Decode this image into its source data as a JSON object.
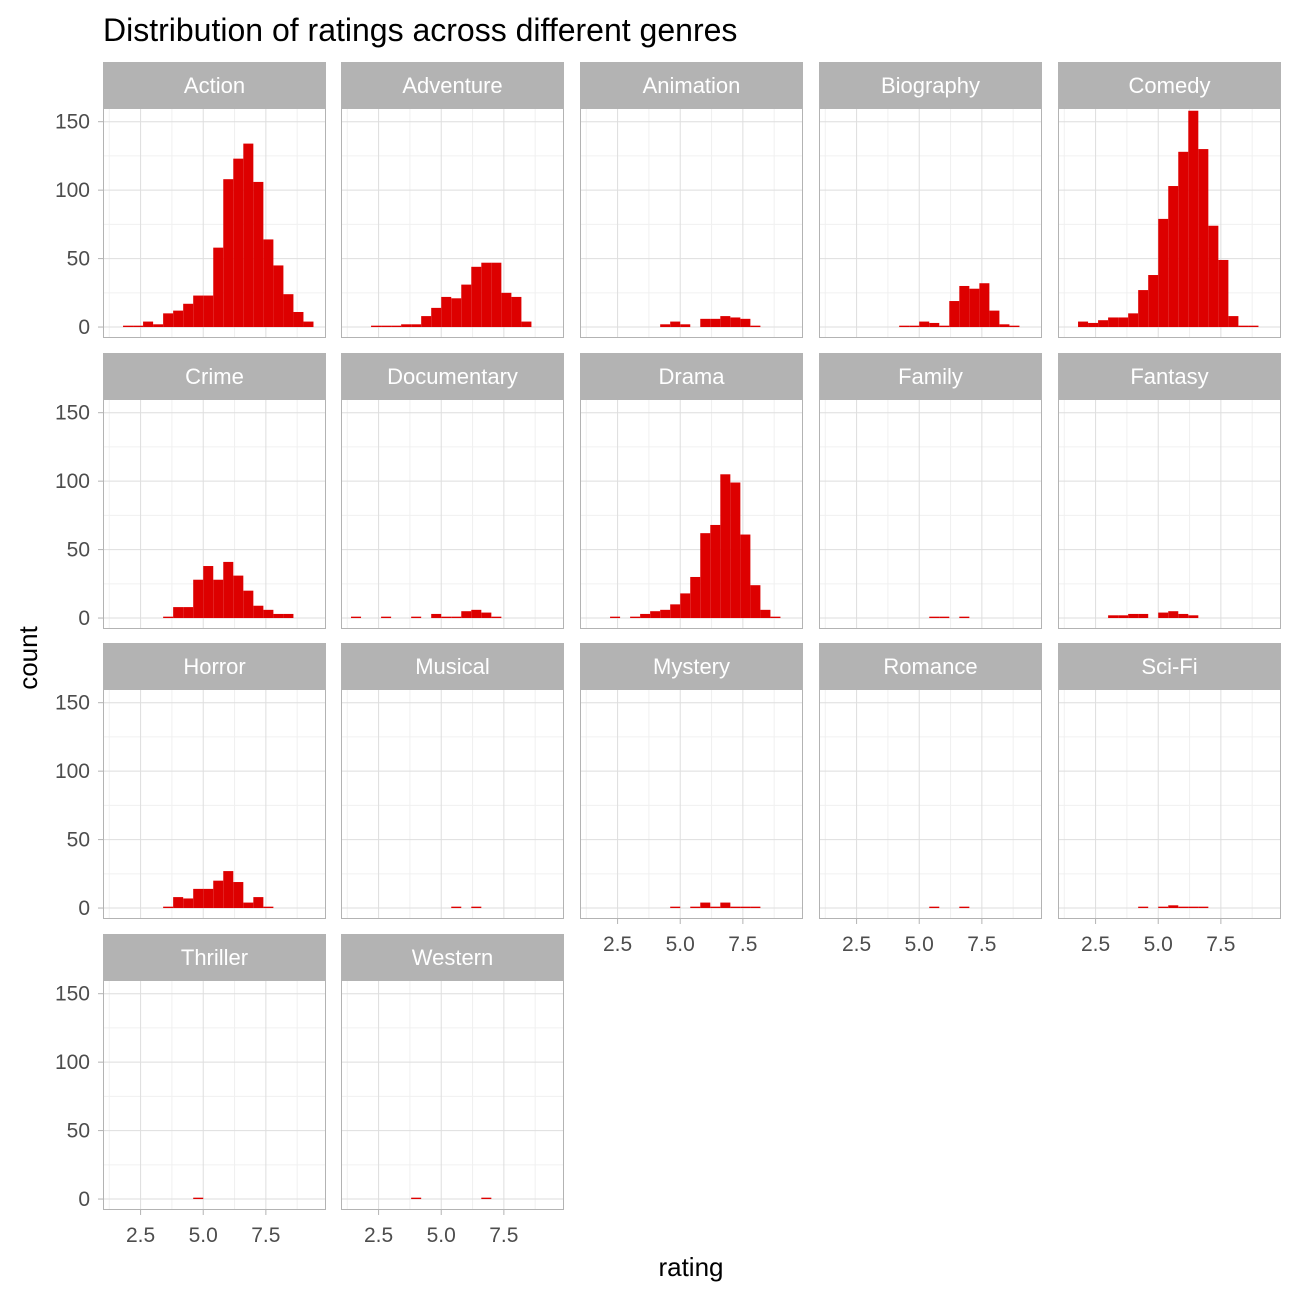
{
  "chart_data": {
    "type": "bar",
    "title": "Distribution of ratings across different genres",
    "xlabel": "rating",
    "ylabel": "count",
    "x_ticks": [
      2.5,
      5.0,
      7.5
    ],
    "x_tick_labels": [
      "2.5",
      "5.0",
      "7.5"
    ],
    "y_ticks": [
      0,
      50,
      100,
      150
    ],
    "y_tick_labels": [
      "0",
      "50",
      "100",
      "150"
    ],
    "xlim": [
      1.0,
      9.9
    ],
    "ylim": [
      -8,
      160
    ],
    "bin_width": 0.4,
    "bar_color": "#dd0000",
    "grid": true,
    "facets": [
      {
        "label": "Action",
        "bars": [
          [
            2.0,
            1
          ],
          [
            2.4,
            1
          ],
          [
            2.8,
            4
          ],
          [
            3.2,
            2
          ],
          [
            3.6,
            10
          ],
          [
            4.0,
            12
          ],
          [
            4.4,
            17
          ],
          [
            4.8,
            23
          ],
          [
            5.2,
            23
          ],
          [
            5.6,
            58
          ],
          [
            6.0,
            108
          ],
          [
            6.4,
            123
          ],
          [
            6.8,
            134
          ],
          [
            7.2,
            106
          ],
          [
            7.6,
            64
          ],
          [
            8.0,
            45
          ],
          [
            8.4,
            24
          ],
          [
            8.8,
            11
          ],
          [
            9.2,
            4
          ]
        ]
      },
      {
        "label": "Adventure",
        "bars": [
          [
            2.4,
            1
          ],
          [
            2.8,
            1
          ],
          [
            3.2,
            1
          ],
          [
            3.6,
            2
          ],
          [
            4.0,
            2
          ],
          [
            4.4,
            8
          ],
          [
            4.8,
            14
          ],
          [
            5.2,
            22
          ],
          [
            5.6,
            21
          ],
          [
            6.0,
            31
          ],
          [
            6.4,
            44
          ],
          [
            6.8,
            47
          ],
          [
            7.2,
            47
          ],
          [
            7.6,
            25
          ],
          [
            8.0,
            22
          ],
          [
            8.4,
            4
          ]
        ]
      },
      {
        "label": "Animation",
        "bars": [
          [
            4.4,
            2
          ],
          [
            4.8,
            4
          ],
          [
            5.2,
            2
          ],
          [
            6.0,
            6
          ],
          [
            6.4,
            6
          ],
          [
            6.8,
            8
          ],
          [
            7.2,
            7
          ],
          [
            7.6,
            6
          ],
          [
            8.0,
            1
          ]
        ]
      },
      {
        "label": "Biography",
        "bars": [
          [
            4.4,
            1
          ],
          [
            4.8,
            1
          ],
          [
            5.2,
            4
          ],
          [
            5.6,
            3
          ],
          [
            6.0,
            1
          ],
          [
            6.4,
            19
          ],
          [
            6.8,
            30
          ],
          [
            7.2,
            28
          ],
          [
            7.6,
            32
          ],
          [
            8.0,
            12
          ],
          [
            8.4,
            2
          ],
          [
            8.8,
            1
          ]
        ]
      },
      {
        "label": "Comedy",
        "bars": [
          [
            2.0,
            4
          ],
          [
            2.4,
            3
          ],
          [
            2.8,
            5
          ],
          [
            3.2,
            7
          ],
          [
            3.6,
            7
          ],
          [
            4.0,
            10
          ],
          [
            4.4,
            27
          ],
          [
            4.8,
            38
          ],
          [
            5.2,
            79
          ],
          [
            5.6,
            103
          ],
          [
            6.0,
            128
          ],
          [
            6.4,
            158
          ],
          [
            6.8,
            130
          ],
          [
            7.2,
            74
          ],
          [
            7.6,
            49
          ],
          [
            8.0,
            8
          ],
          [
            8.4,
            1
          ],
          [
            8.8,
            1
          ]
        ]
      },
      {
        "label": "Crime",
        "bars": [
          [
            3.6,
            1
          ],
          [
            4.0,
            8
          ],
          [
            4.4,
            8
          ],
          [
            4.8,
            28
          ],
          [
            5.2,
            38
          ],
          [
            5.6,
            28
          ],
          [
            6.0,
            41
          ],
          [
            6.4,
            31
          ],
          [
            6.8,
            20
          ],
          [
            7.2,
            9
          ],
          [
            7.6,
            6
          ],
          [
            8.0,
            3
          ],
          [
            8.4,
            3
          ]
        ]
      },
      {
        "label": "Documentary",
        "bars": [
          [
            1.6,
            1
          ],
          [
            2.8,
            1
          ],
          [
            4.0,
            1
          ],
          [
            4.8,
            3
          ],
          [
            5.2,
            1
          ],
          [
            5.6,
            1
          ],
          [
            6.0,
            5
          ],
          [
            6.4,
            6
          ],
          [
            6.8,
            4
          ],
          [
            7.2,
            1
          ]
        ]
      },
      {
        "label": "Drama",
        "bars": [
          [
            2.4,
            1
          ],
          [
            3.2,
            1
          ],
          [
            3.6,
            3
          ],
          [
            4.0,
            5
          ],
          [
            4.4,
            6
          ],
          [
            4.8,
            10
          ],
          [
            5.2,
            18
          ],
          [
            5.6,
            30
          ],
          [
            6.0,
            62
          ],
          [
            6.4,
            68
          ],
          [
            6.8,
            105
          ],
          [
            7.2,
            99
          ],
          [
            7.6,
            61
          ],
          [
            8.0,
            24
          ],
          [
            8.4,
            6
          ],
          [
            8.8,
            1
          ]
        ]
      },
      {
        "label": "Family",
        "bars": [
          [
            5.6,
            1
          ],
          [
            6.0,
            1
          ],
          [
            6.8,
            1
          ]
        ]
      },
      {
        "label": "Fantasy",
        "bars": [
          [
            3.2,
            2
          ],
          [
            3.6,
            2
          ],
          [
            4.0,
            3
          ],
          [
            4.4,
            3
          ],
          [
            5.2,
            4
          ],
          [
            5.6,
            5
          ],
          [
            6.0,
            3
          ],
          [
            6.4,
            2
          ]
        ]
      },
      {
        "label": "Horror",
        "bars": [
          [
            3.6,
            1
          ],
          [
            4.0,
            8
          ],
          [
            4.4,
            7
          ],
          [
            4.8,
            14
          ],
          [
            5.2,
            14
          ],
          [
            5.6,
            20
          ],
          [
            6.0,
            27
          ],
          [
            6.4,
            19
          ],
          [
            6.8,
            4
          ],
          [
            7.2,
            8
          ],
          [
            7.6,
            1
          ]
        ]
      },
      {
        "label": "Musical",
        "bars": [
          [
            5.6,
            1
          ],
          [
            6.4,
            1
          ]
        ]
      },
      {
        "label": "Mystery",
        "bars": [
          [
            4.8,
            1
          ],
          [
            5.6,
            1
          ],
          [
            6.0,
            4
          ],
          [
            6.4,
            1
          ],
          [
            6.8,
            4
          ],
          [
            7.2,
            1
          ],
          [
            7.6,
            1
          ],
          [
            8.0,
            1
          ]
        ]
      },
      {
        "label": "Romance",
        "bars": [
          [
            5.6,
            1
          ],
          [
            6.8,
            1
          ]
        ]
      },
      {
        "label": "Sci-Fi",
        "bars": [
          [
            4.4,
            1
          ],
          [
            5.2,
            1
          ],
          [
            5.6,
            2
          ],
          [
            6.0,
            1
          ],
          [
            6.4,
            1
          ],
          [
            6.8,
            1
          ]
        ]
      },
      {
        "label": "Thriller",
        "bars": [
          [
            4.8,
            1
          ]
        ]
      },
      {
        "label": "Western",
        "bars": [
          [
            4.0,
            1
          ],
          [
            6.8,
            1
          ]
        ]
      }
    ]
  }
}
